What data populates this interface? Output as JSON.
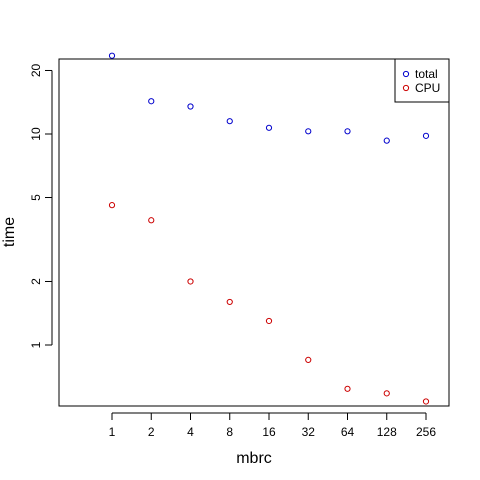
{
  "chart_data": {
    "type": "scatter",
    "xlabel": "mbrc",
    "ylabel": "time",
    "x_scale": "log2",
    "y_scale": "log",
    "categories": [
      "1",
      "2",
      "4",
      "8",
      "16",
      "32",
      "64",
      "128",
      "256"
    ],
    "x": [
      1,
      2,
      4,
      8,
      16,
      32,
      64,
      128,
      256
    ],
    "y_ticks": [
      1,
      2,
      5,
      10,
      20
    ],
    "y_tick_labels": [
      "1",
      "2",
      "5",
      "10",
      "20"
    ],
    "ylim": [
      0.4,
      55
    ],
    "grid": false,
    "legend_position": "top-right",
    "marker": "open-circle",
    "series": [
      {
        "name": "total",
        "color": "#0000CC",
        "values": [
          23.5,
          14.3,
          13.5,
          11.5,
          10.7,
          10.3,
          10.3,
          9.3,
          9.8
        ]
      },
      {
        "name": "CPU",
        "color": "#CC0000",
        "values": [
          4.6,
          3.9,
          2.0,
          1.6,
          1.3,
          0.85,
          0.62,
          0.59,
          0.54
        ]
      }
    ]
  }
}
